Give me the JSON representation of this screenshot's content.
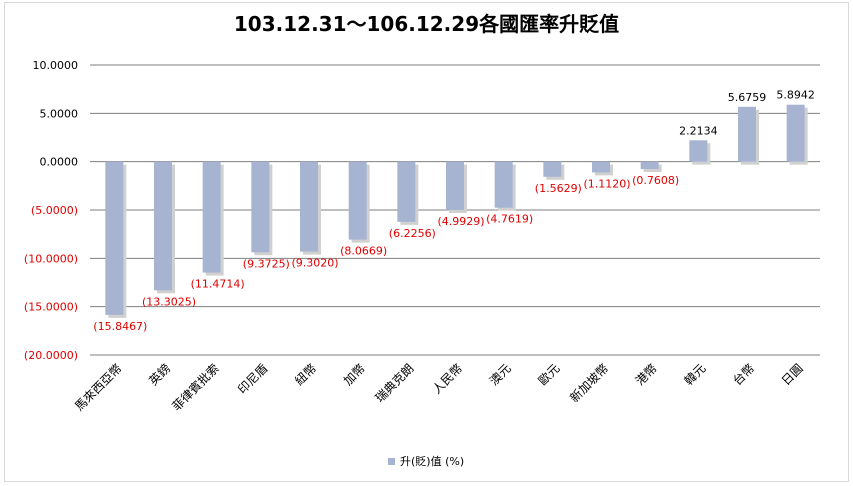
{
  "chart_data": {
    "type": "bar",
    "title": "103.12.31～106.12.29各國匯率升貶值",
    "categories": [
      "馬來西亞幣",
      "英鎊",
      "菲律賓批索",
      "印尼盾",
      "紐幣",
      "加幣",
      "瑞典克朗",
      "人民幣",
      "澳元",
      "歐元",
      "新加坡幣",
      "港幣",
      "韓元",
      "台幣",
      "日圓"
    ],
    "series": [
      {
        "name": "升(貶)值 (%)",
        "values": [
          -15.8467,
          -13.3025,
          -11.4714,
          -9.3725,
          -9.302,
          -8.0669,
          -6.2256,
          -4.9929,
          -4.7619,
          -1.5629,
          -1.112,
          -0.7608,
          2.2134,
          5.6759,
          5.8942
        ],
        "value_labels": [
          "(15.8467)",
          "(13.3025)",
          "(11.4714)",
          "(9.3725)",
          "(9.3020)",
          "(8.0669)",
          "(6.2256)",
          "(4.9929)",
          "(4.7619)",
          "(1.5629)",
          "(1.1120)",
          "(0.7608)",
          "2.2134",
          "5.6759",
          "5.8942"
        ]
      }
    ],
    "ylim": [
      -20,
      10
    ],
    "yticks": [
      10,
      5,
      0,
      -5,
      -10,
      -15,
      -20
    ],
    "ytick_labels": [
      "10.0000",
      "5.0000",
      "0.0000",
      "(5.0000)",
      "(10.0000)",
      "(15.0000)",
      "(20.0000)"
    ],
    "grid": true,
    "legend_position": "bottom",
    "colors": {
      "bar": "#a6b4d2",
      "bar_shadow": "#d0d0d0",
      "negative_text": "#e00000",
      "grid": "#7f7f7f"
    }
  }
}
